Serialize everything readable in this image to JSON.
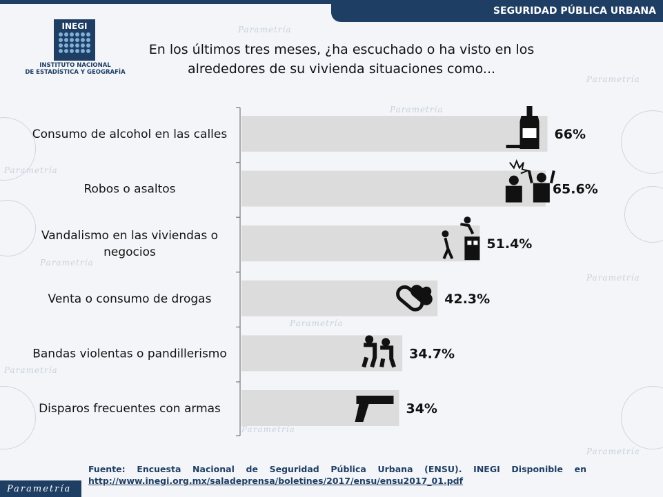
{
  "header": {
    "section": "SEGURIDAD PÚBLICA URBANA"
  },
  "logo": {
    "brand": "INEGI",
    "line1": "INSTITUTO NACIONAL",
    "line2": "DE ESTADÍSTICA Y GEOGRAFÍA"
  },
  "watermark": "Parametría",
  "chart_data": {
    "type": "bar",
    "orientation": "horizontal",
    "title": "En los últimos tres meses, ¿ha escuchado o ha visto en los alrededores de su vivienda situaciones como...",
    "categories": [
      "Consumo de alcohol en las calles",
      "Robos o asaltos",
      "Vandalismo en las viviendas o negocios",
      "Venta o consumo de drogas",
      "Bandas violentas o pandillerismo",
      "Disparos frecuentes con armas"
    ],
    "values": [
      66,
      65.6,
      51.4,
      42.3,
      34.7,
      34
    ],
    "value_labels": [
      "66%",
      "65.6%",
      "51.4%",
      "42.3%",
      "34.7%",
      "34%"
    ],
    "icons": [
      "bottle-icon",
      "robbery-icon",
      "vandalism-icon",
      "pills-icon",
      "gang-fight-icon",
      "gun-icon"
    ],
    "xlim": [
      0,
      100
    ],
    "bar_color": "#dcdcdc",
    "grid": false
  },
  "footer": {
    "source": "Fuente: Encuesta Nacional de Seguridad Pública Urbana (ENSU). INEGI Disponible en",
    "url": "http://www.inegi.org.mx/saladeprensa/boletines/2017/ensu/ensu2017_01.pdf"
  },
  "brand_footer": "Parametría"
}
